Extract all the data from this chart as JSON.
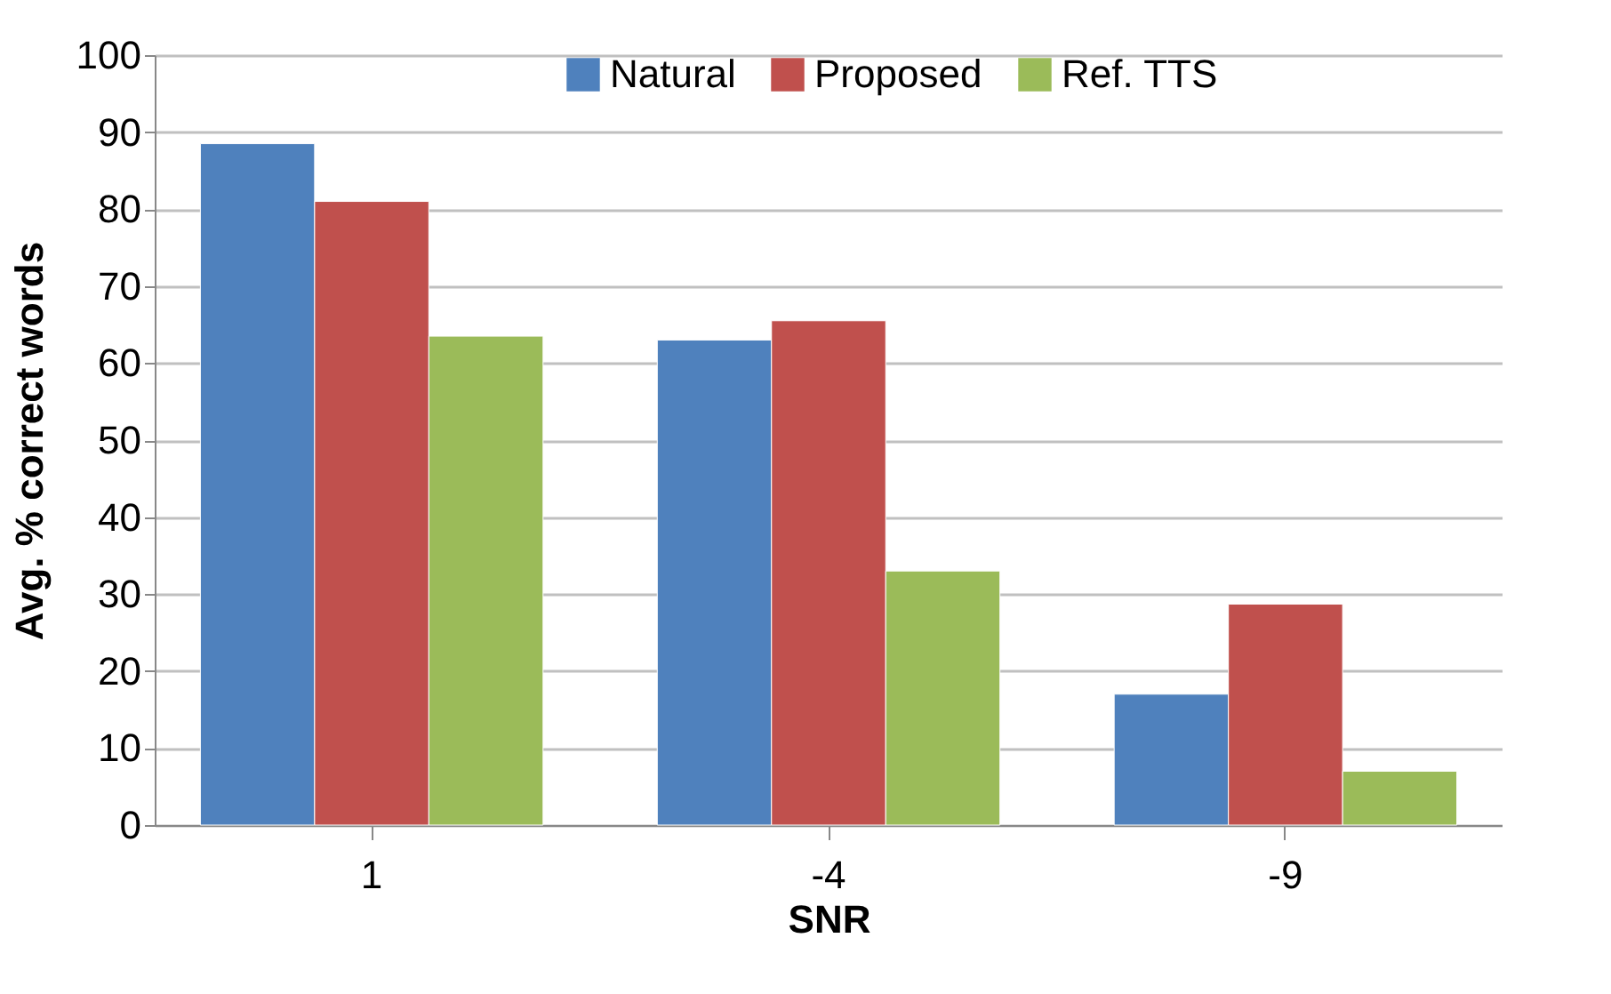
{
  "chart_data": {
    "type": "bar",
    "xlabel": "SNR",
    "ylabel": "Avg. % correct words",
    "categories": [
      "1",
      "-4",
      "-9"
    ],
    "series": [
      {
        "name": "Natural",
        "color": "#4f81bd",
        "values": [
          88.5,
          63,
          17
        ]
      },
      {
        "name": "Proposed",
        "color": "#c0504d",
        "values": [
          81,
          65.5,
          28.7
        ]
      },
      {
        "name": "Ref. TTS",
        "color": "#9bbb59",
        "values": [
          63.5,
          33,
          7
        ]
      }
    ],
    "ylim": [
      0,
      100
    ],
    "yticks": [
      0,
      10,
      20,
      30,
      40,
      50,
      60,
      70,
      80,
      90,
      100
    ],
    "grid": "y",
    "legend": "top"
  }
}
